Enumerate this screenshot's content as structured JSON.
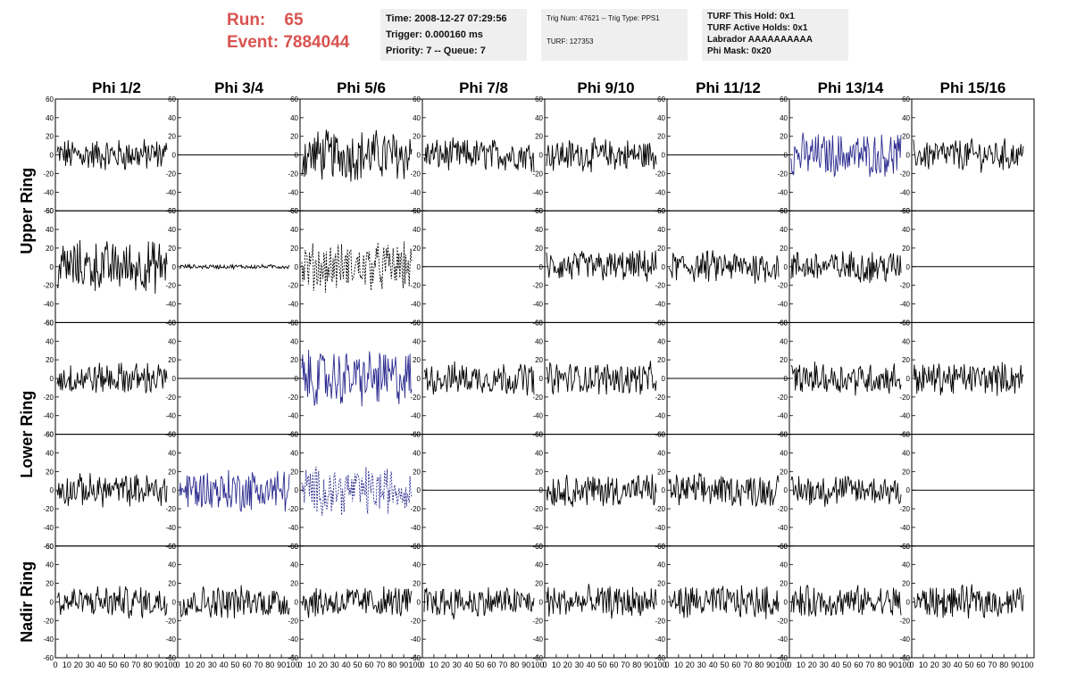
{
  "header": {
    "run_label": "Run:",
    "run_value": "65",
    "event_label": "Event:",
    "event_value": "7884044",
    "time_box": [
      "Time: 2008-12-27 07:29:56",
      "Trigger: 0.000160 ms",
      "Priority: 7 -- Queue: 7"
    ],
    "trig_box": [
      "Trig Num: 47621 -- Trig Type: PPS1",
      "TURF: 127353"
    ],
    "turf_box": [
      "TURF This Hold: 0x1",
      "TURF Active Holds: 0x1",
      "Labrador AAAAAAAAAA",
      "Phi Mask: 0x20"
    ]
  },
  "colors": {
    "trace": "#000000",
    "highlight": "#2b2b8f",
    "header_red": "#d9534f",
    "box_bg": "#efefef"
  },
  "chart_data": {
    "type": "line",
    "column_titles": [
      "Phi 1/2",
      "Phi 3/4",
      "Phi 5/6",
      "Phi 7/8",
      "Phi 9/10",
      "Phi 11/12",
      "Phi 13/14",
      "Phi 15/16"
    ],
    "ring_labels": [
      "Upper Ring",
      "Lower Ring",
      "Nadir Ring"
    ],
    "ylim": [
      -60,
      60
    ],
    "xlim": [
      0,
      100
    ],
    "y_tick_labels": [
      "60",
      "40",
      "20",
      "0",
      "-20",
      "-40",
      "-60"
    ],
    "x_tick_labels": [
      "0",
      "10",
      "20",
      "30",
      "40",
      "50",
      "60",
      "70",
      "80",
      "90",
      "100"
    ],
    "panels": [
      [
        "noise",
        "flat",
        "noise_big",
        "noise",
        "noise",
        "flat",
        "noise_blue",
        "noise"
      ],
      [
        "noise_big",
        "small",
        "dashed",
        "flat",
        "noise",
        "noise",
        "noise",
        "flat"
      ],
      [
        "noise",
        "flat",
        "noise_blue_big",
        "noise",
        "noise",
        "flat",
        "noise",
        "noise"
      ],
      [
        "noise",
        "noise_blue",
        "dashed_blue",
        "flat",
        "noise",
        "noise",
        "noise",
        "flat"
      ],
      [
        "noise",
        "noise",
        "noise",
        "noise",
        "noise",
        "noise",
        "noise",
        "noise"
      ]
    ],
    "amplitudes": {
      "noise": 15,
      "noise_big": 24,
      "noise_blue": 20,
      "noise_blue_big": 26,
      "small": 2,
      "dashed": 22,
      "dashed_blue": 22,
      "flat": 0
    }
  }
}
